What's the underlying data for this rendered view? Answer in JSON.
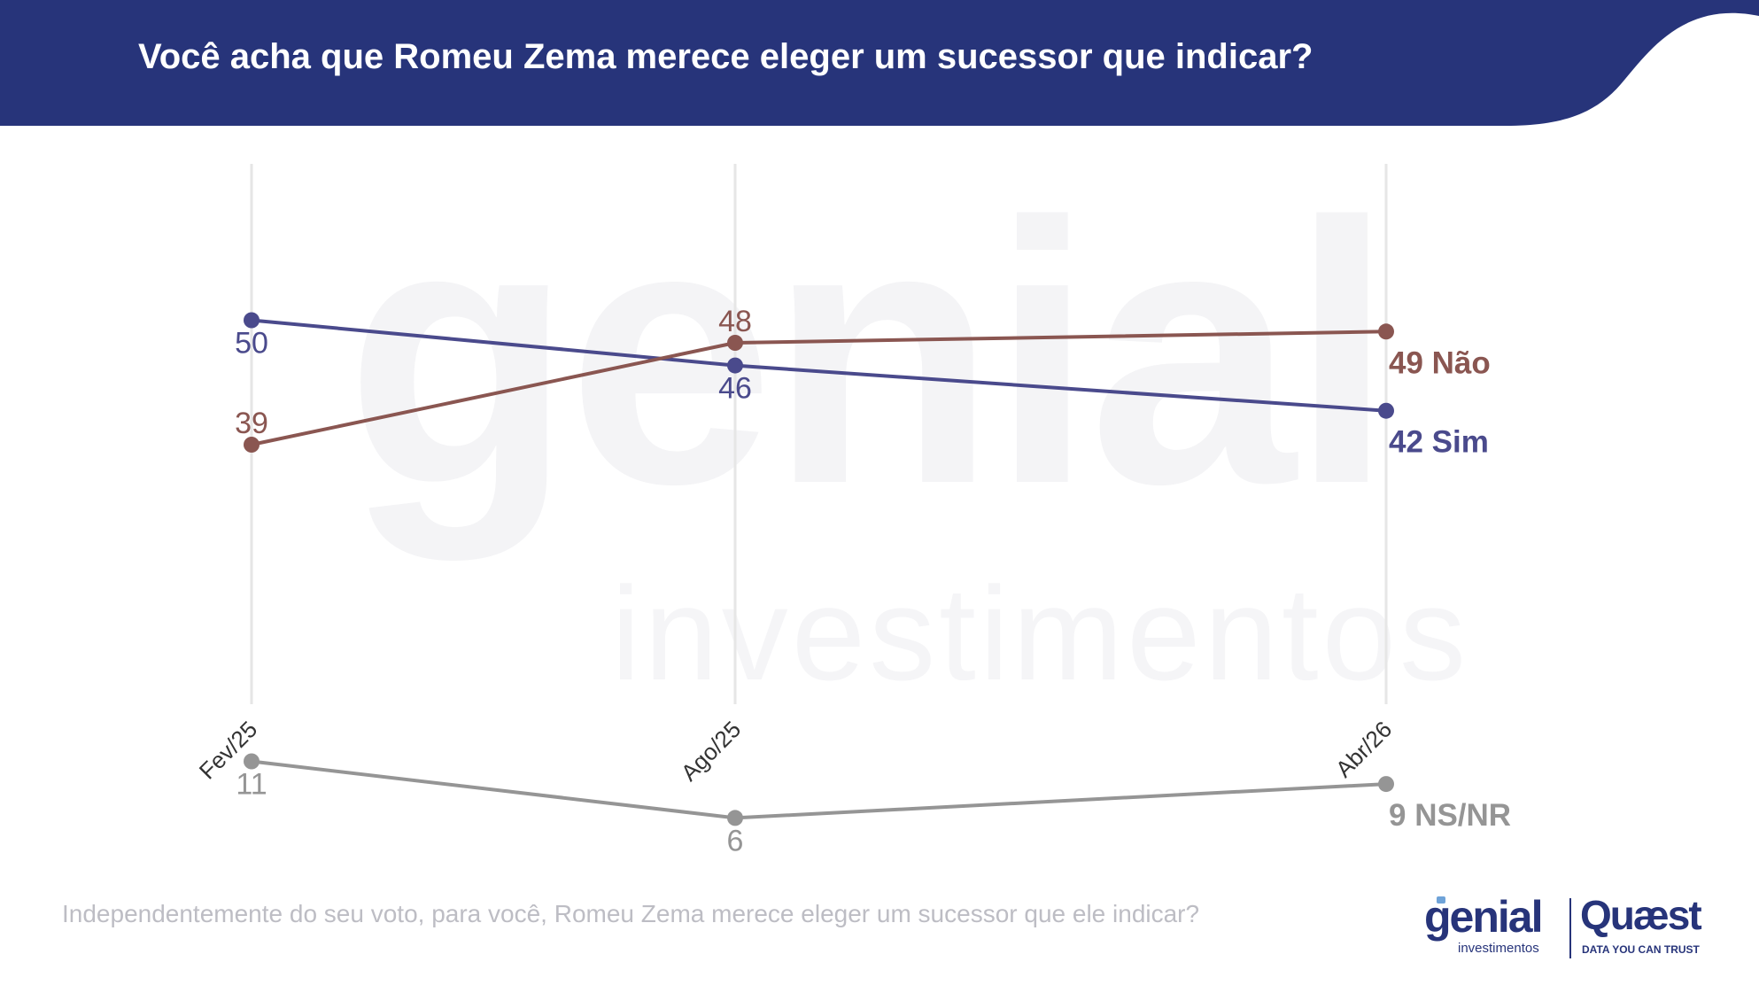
{
  "header": {
    "title": "Você acha que Romeu Zema merece eleger um sucessor que indicar?",
    "band_color": "#27347a"
  },
  "watermark": {
    "main": "genial",
    "sub": "investimentos"
  },
  "footer": {
    "question": "Independentemente do seu voto, para você, Romeu Zema merece eleger um sucessor que ele indicar?"
  },
  "logos": {
    "genial": {
      "word": "genial",
      "sub": "investimentos"
    },
    "quaest": {
      "word": "Quæst",
      "sub": "DATA YOU CAN TRUST"
    }
  },
  "chart_data": {
    "type": "line",
    "categories": [
      "Fev/25",
      "Ago/25",
      "Abr/26"
    ],
    "ylim": [
      0,
      60
    ],
    "grid": "vertical",
    "series": [
      {
        "name": "Sim",
        "values": [
          50,
          46,
          42
        ],
        "color": "#4a4a8c",
        "end_label": "42 Sim",
        "point_labels": [
          "50",
          "46",
          ""
        ],
        "label_side": "below"
      },
      {
        "name": "Não",
        "values": [
          39,
          48,
          49
        ],
        "color": "#8a5651",
        "end_label": "49 Não",
        "point_labels": [
          "39",
          "48",
          ""
        ],
        "label_side": "above"
      },
      {
        "name": "NS/NR",
        "values": [
          11,
          6,
          9
        ],
        "color": "#959595",
        "end_label": "9 NS/NR",
        "point_labels": [
          "11",
          "6",
          ""
        ],
        "label_side": "below"
      }
    ]
  }
}
